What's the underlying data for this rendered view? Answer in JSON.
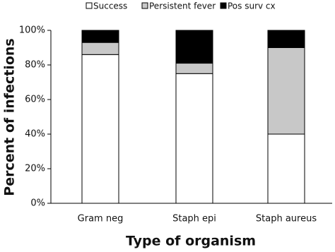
{
  "chart_data": {
    "type": "stacked-bar",
    "y_label": "Percent of infections",
    "x_label": "Type of organism",
    "categories": [
      "Gram neg",
      "Staph epi",
      "Staph aureus"
    ],
    "series": [
      {
        "name": "Success",
        "color": "#ffffff",
        "values": [
          86,
          75,
          40
        ]
      },
      {
        "name": "Persistent fever",
        "color": "#c8c8c8",
        "values": [
          7,
          6,
          50
        ]
      },
      {
        "name": "Pos surv cx",
        "color": "#000000",
        "values": [
          7,
          19,
          10
        ]
      }
    ],
    "ylim": [
      0,
      100
    ],
    "yticks": [
      {
        "value": 0,
        "label": "0%"
      },
      {
        "value": 20,
        "label": "20%"
      },
      {
        "value": 40,
        "label": "40%"
      },
      {
        "value": 60,
        "label": "60%"
      },
      {
        "value": 80,
        "label": "80%"
      },
      {
        "value": 100,
        "label": "100%"
      }
    ],
    "legend": "top"
  }
}
